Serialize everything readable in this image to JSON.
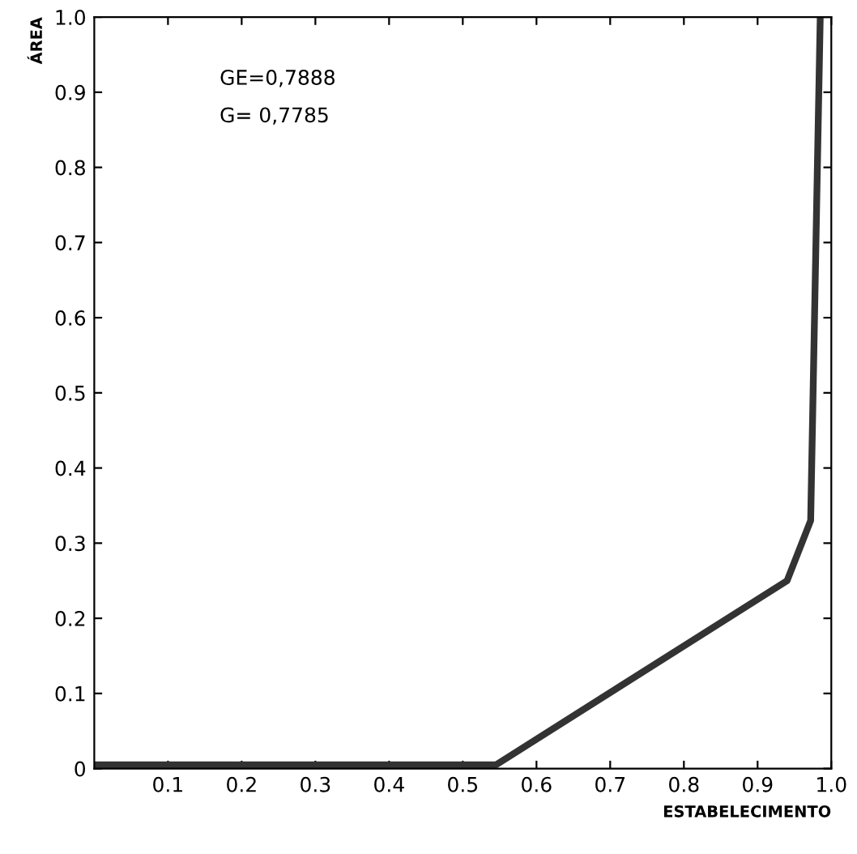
{
  "chart_data": {
    "type": "line",
    "xlabel": "ESTABELECIMENTO",
    "ylabel": "ÁREA",
    "annotations": [
      "GE=0,7888",
      "G= 0,7785"
    ],
    "x": [
      0,
      0.545,
      0.94,
      0.972,
      0.985
    ],
    "series": [
      {
        "color": "#333333",
        "values": [
          0.005,
          0.005,
          0.25,
          0.33,
          1.0
        ]
      }
    ],
    "xlim": [
      0,
      1.0
    ],
    "ylim": [
      0,
      1.0
    ],
    "xticks": [
      0.1,
      0.2,
      0.3,
      0.4,
      0.5,
      0.6,
      0.7,
      0.8,
      0.9,
      {
        "value": 1,
        "label": "1.0"
      }
    ],
    "yticks": [
      0,
      0.1,
      0.2,
      0.3,
      0.4,
      0.5,
      0.6,
      0.7,
      0.8,
      0.9,
      {
        "value": 1,
        "label": "1.0"
      }
    ],
    "grid": false,
    "legend": false,
    "marker": "none",
    "line_style": "solid"
  }
}
